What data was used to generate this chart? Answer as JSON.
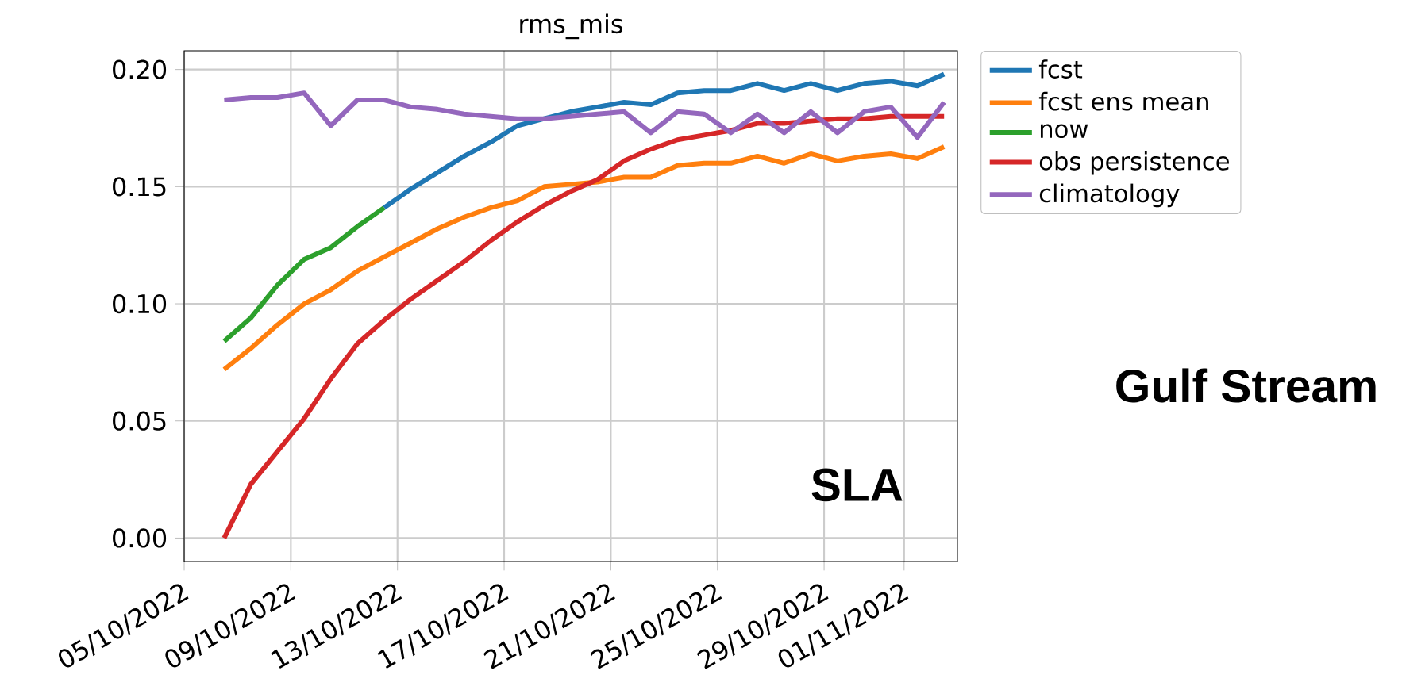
{
  "chart_data": {
    "type": "line",
    "title": "rms_mis",
    "x": [
      "2022-10-06T12:00",
      "2022-10-07T12:00",
      "2022-10-08T12:00",
      "2022-10-09T12:00",
      "2022-10-10T12:00",
      "2022-10-11T12:00",
      "2022-10-12T12:00",
      "2022-10-13T12:00",
      "2022-10-14T12:00",
      "2022-10-15T12:00",
      "2022-10-16T12:00",
      "2022-10-17T12:00",
      "2022-10-18T12:00",
      "2022-10-19T12:00",
      "2022-10-20T12:00",
      "2022-10-21T12:00",
      "2022-10-22T12:00",
      "2022-10-23T12:00",
      "2022-10-24T12:00",
      "2022-10-25T12:00",
      "2022-10-26T12:00",
      "2022-10-27T12:00",
      "2022-10-28T12:00",
      "2022-10-29T12:00",
      "2022-10-30T12:00",
      "2022-10-31T12:00",
      "2022-11-01T12:00",
      "2022-11-02T12:00"
    ],
    "series": [
      {
        "name": "fcst",
        "color": "#1f77b4",
        "values": [
          null,
          null,
          null,
          null,
          null,
          null,
          0.141,
          0.149,
          0.156,
          0.163,
          0.169,
          0.176,
          0.179,
          0.182,
          0.184,
          0.186,
          0.185,
          0.19,
          0.191,
          0.191,
          0.194,
          0.191,
          0.194,
          0.191,
          0.194,
          0.195,
          0.193,
          0.198
        ]
      },
      {
        "name": "fcst ens mean",
        "color": "#ff7f0e",
        "values": [
          0.072,
          0.081,
          0.091,
          0.1,
          0.106,
          0.114,
          0.12,
          0.126,
          0.132,
          0.137,
          0.141,
          0.144,
          0.15,
          0.151,
          0.152,
          0.154,
          0.154,
          0.159,
          0.16,
          0.16,
          0.163,
          0.16,
          0.164,
          0.161,
          0.163,
          0.164,
          0.162,
          0.167
        ]
      },
      {
        "name": "now",
        "color": "#2ca02c",
        "values": [
          0.084,
          0.094,
          0.108,
          0.119,
          0.124,
          0.133,
          0.141,
          null,
          null,
          null,
          null,
          null,
          null,
          null,
          null,
          null,
          null,
          null,
          null,
          null,
          null,
          null,
          null,
          null,
          null,
          null,
          null,
          null
        ]
      },
      {
        "name": "obs persistence",
        "color": "#d62728",
        "values": [
          0.0,
          0.023,
          0.037,
          0.051,
          0.068,
          0.083,
          0.093,
          0.102,
          0.11,
          0.118,
          0.127,
          0.135,
          0.142,
          0.148,
          0.153,
          0.161,
          0.166,
          0.17,
          0.172,
          0.174,
          0.177,
          0.177,
          0.178,
          0.179,
          0.179,
          0.18,
          0.18,
          0.18
        ]
      },
      {
        "name": "climatology",
        "color": "#9467bd",
        "values": [
          0.187,
          0.188,
          0.188,
          0.19,
          0.176,
          0.187,
          0.187,
          0.184,
          0.183,
          0.181,
          0.18,
          0.179,
          0.179,
          0.18,
          0.181,
          0.182,
          0.173,
          0.182,
          0.181,
          0.173,
          0.181,
          0.173,
          0.182,
          0.173,
          0.182,
          0.184,
          0.171,
          0.186
        ]
      }
    ],
    "xlim": [
      "2022-10-05",
      "2022-11-03"
    ],
    "xticks": [
      {
        "value": "2022-10-05",
        "label": "05/10/2022"
      },
      {
        "value": "2022-10-09",
        "label": "09/10/2022"
      },
      {
        "value": "2022-10-13",
        "label": "13/10/2022"
      },
      {
        "value": "2022-10-17",
        "label": "17/10/2022"
      },
      {
        "value": "2022-10-21",
        "label": "21/10/2022"
      },
      {
        "value": "2022-10-25",
        "label": "25/10/2022"
      },
      {
        "value": "2022-10-29",
        "label": "29/10/2022"
      },
      {
        "value": "2022-11-01",
        "label": "01/11/2022"
      }
    ],
    "ylim": [
      -0.01,
      0.208
    ],
    "yticks": [
      {
        "value": 0,
        "label": "0.00"
      },
      {
        "value": 0.05,
        "label": "0.05"
      },
      {
        "value": 0.1,
        "label": "0.10"
      },
      {
        "value": 0.15,
        "label": "0.15"
      },
      {
        "value": 0.2,
        "label": "0.20"
      }
    ],
    "grid": true,
    "legend": "right",
    "marker": "none",
    "line_style": "solid",
    "annotations": [
      "SLA",
      "Gulf Stream"
    ]
  }
}
